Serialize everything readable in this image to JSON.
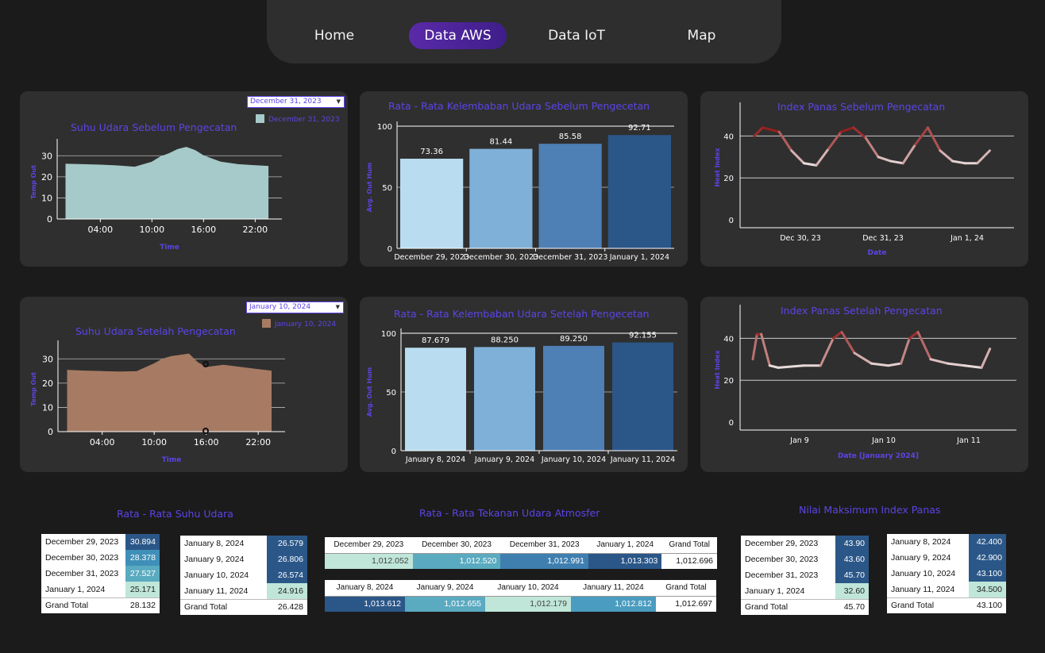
{
  "nav": {
    "items": [
      "Home",
      "Data AWS",
      "Data IoT",
      "Map"
    ],
    "active": "Data AWS"
  },
  "temp_before": {
    "title": "Suhu Udara Sebelum Pengecatan",
    "filter": "December 31, 2023",
    "legend": "December 31, 2023",
    "color": "#a6c9c9",
    "xlabel": "Time",
    "ylabel": "Temp Out",
    "yticks": [
      "30",
      "20",
      "10",
      "0"
    ],
    "xticks": [
      "04:00",
      "10:00",
      "16:00",
      "22:00"
    ]
  },
  "temp_after": {
    "title": "Suhu Udara Setelah Pengecatan",
    "filter": "January 10, 2024",
    "legend": "January 10, 2024",
    "color": "#a77b63",
    "xlabel": "Time",
    "ylabel": "Temp Out",
    "yticks": [
      "30",
      "20",
      "10",
      "0"
    ],
    "xticks": [
      "04:00",
      "10:00",
      "16:00",
      "22:00"
    ]
  },
  "hum_before": {
    "title": "Rata - Rata Kelembaban Udara Sebelum Pengecetan",
    "ylabel": "Avg. Out Hum",
    "yticks": [
      "100",
      "50",
      "0"
    ]
  },
  "hum_after": {
    "title": "Rata - Rata Kelembaban Udara Setelah Pengecetan",
    "ylabel": "Avg. Out Hum",
    "yticks": [
      "100",
      "50",
      "0"
    ]
  },
  "heat_before": {
    "title": "Index Panas Sebelum Pengecatan",
    "ylabel": "Heat Index",
    "xlabel": "Date",
    "yticks": [
      "40",
      "20",
      "0"
    ],
    "xticks": [
      "Dec 30, 23",
      "Dec 31, 23",
      "Jan 1, 24"
    ]
  },
  "heat_after": {
    "title": "Index Panas Setelah Pengecatan",
    "ylabel": "Heat Index",
    "xlabel": "Date [January 2024]",
    "yticks": [
      "40",
      "20",
      "0"
    ],
    "xticks": [
      "Jan 9",
      "Jan 10",
      "Jan 11"
    ]
  },
  "chart_data": [
    {
      "type": "bar",
      "title": "Rata - Rata Kelembaban Udara Sebelum Pengecetan",
      "categories": [
        "December 29, 2023",
        "December 30, 2023",
        "December 31, 2023",
        "January 1, 2024"
      ],
      "values": [
        73.36,
        81.44,
        85.58,
        92.71
      ],
      "labels": [
        "73.36",
        "81.44",
        "85.58",
        "92.71"
      ],
      "colors": [
        "#b9dcf0",
        "#7fb0d8",
        "#4e7fb5",
        "#2b5788"
      ],
      "ylabel": "Avg. Out Hum",
      "ylim": [
        0,
        100
      ]
    },
    {
      "type": "bar",
      "title": "Rata - Rata Kelembaban Udara Setelah Pengecetan",
      "categories": [
        "January 8, 2024",
        "January 9, 2024",
        "January 10, 2024",
        "January 11, 2024"
      ],
      "values": [
        87.679,
        88.25,
        89.25,
        92.155
      ],
      "labels": [
        "87.679",
        "88.250",
        "89.250",
        "92.155"
      ],
      "colors": [
        "#b9dcf0",
        "#7fb0d8",
        "#4e7fb5",
        "#2b5788"
      ],
      "ylabel": "Avg. Out Hum",
      "ylim": [
        0,
        100
      ]
    },
    {
      "type": "area",
      "title": "Suhu Udara Sebelum Pengecatan",
      "x": [
        0,
        2,
        4,
        6,
        8,
        10,
        11,
        12,
        13,
        14,
        15,
        16,
        18,
        20,
        22,
        23.5
      ],
      "values": [
        26,
        25.8,
        25.6,
        25.2,
        24.6,
        27,
        29.5,
        31,
        33,
        34,
        32.5,
        30,
        27,
        25.8,
        25.3,
        25
      ],
      "xlabel": "Time",
      "ylabel": "Temp Out",
      "ylim": [
        0,
        35
      ]
    },
    {
      "type": "area",
      "title": "Suhu Udara Setelah Pengecatan",
      "x": [
        0,
        2,
        4,
        6,
        8,
        10,
        11,
        12,
        13,
        14,
        15,
        16,
        18,
        20,
        22,
        23.5
      ],
      "values": [
        25.3,
        25,
        24.8,
        24.6,
        24.8,
        28,
        30,
        31,
        31.5,
        32,
        28.5,
        26.5,
        27.4,
        26.5,
        25.6,
        25
      ],
      "xlabel": "Time",
      "ylabel": "Temp Out",
      "ylim": [
        0,
        35
      ]
    },
    {
      "type": "line",
      "title": "Index Panas Sebelum Pengecatan",
      "x": [
        0,
        0.1,
        0.3,
        0.45,
        0.6,
        0.75,
        0.9,
        1.05,
        1.2,
        1.35,
        1.5,
        1.65,
        1.8,
        1.95,
        2.1,
        2.25,
        2.4,
        2.55,
        2.7,
        2.85
      ],
      "values": [
        40,
        44,
        42,
        33,
        27,
        26,
        34,
        42,
        44,
        39,
        30,
        28,
        27,
        36,
        44,
        33,
        28,
        27,
        27,
        33
      ],
      "ylabel": "Heat Index",
      "xlabel": "Date",
      "ylim": [
        0,
        50
      ]
    },
    {
      "type": "line",
      "title": "Index Panas Setelah Pengecatan",
      "x": [
        0,
        0.05,
        0.1,
        0.2,
        0.3,
        0.6,
        0.8,
        0.95,
        1.05,
        1.2,
        1.4,
        1.6,
        1.75,
        1.85,
        1.95,
        2.1,
        2.3,
        2.5,
        2.7,
        2.8
      ],
      "values": [
        30,
        42,
        42,
        27,
        26,
        27,
        27,
        40,
        43,
        33,
        28,
        27,
        28,
        40,
        43,
        30,
        28,
        27,
        26,
        35
      ],
      "ylabel": "Heat Index",
      "xlabel": "Date [January 2024]",
      "ylim": [
        0,
        50
      ]
    }
  ],
  "suhu": {
    "title": "Rata - Rata Suhu Udara",
    "table1": [
      {
        "label": "December 29, 2023",
        "value": "30.894",
        "color": "#2b5788",
        "tc": "#fff"
      },
      {
        "label": "December 30, 2023",
        "value": "28.378",
        "color": "#3f8fb8",
        "tc": "#fff"
      },
      {
        "label": "December 31, 2023",
        "value": "27.527",
        "color": "#5aaac0",
        "tc": "#fff"
      },
      {
        "label": "January 1, 2024",
        "value": "25.171",
        "color": "#bfe6d8",
        "tc": "#222"
      }
    ],
    "table1_total": {
      "label": "Grand Total",
      "value": "28.132"
    },
    "table2": [
      {
        "label": "January 8, 2024",
        "value": "26.579",
        "color": "#2b5788",
        "tc": "#fff"
      },
      {
        "label": "January 9, 2024",
        "value": "26.806",
        "color": "#2b5788",
        "tc": "#fff"
      },
      {
        "label": "January 10, 2024",
        "value": "26.574",
        "color": "#2b5788",
        "tc": "#fff"
      },
      {
        "label": "January 11, 2024",
        "value": "24.916",
        "color": "#bfe6d8",
        "tc": "#222"
      }
    ],
    "table2_total": {
      "label": "Grand Total",
      "value": "26.428"
    }
  },
  "tekanan": {
    "title": "Rata - Rata Tekanan Udara Atmosfer",
    "table1": {
      "headers": [
        "December 29, 2023",
        "December 30, 2023",
        "December 31, 2023",
        "January 1, 2024",
        "Grand Total"
      ],
      "values": [
        "1,012.052",
        "1,012.520",
        "1,012.991",
        "1,013.303",
        "1,012.696"
      ],
      "colors": [
        "#bfe6d8",
        "#5aaac0",
        "#3f7fb0",
        "#2b5788",
        "#ffffff"
      ],
      "tcs": [
        "#444",
        "#fff",
        "#fff",
        "#fff",
        "#111"
      ]
    },
    "table2": {
      "headers": [
        "January 8, 2024",
        "January 9, 2024",
        "January 10, 2024",
        "January 11, 2024",
        "Grand Total"
      ],
      "values": [
        "1,013.612",
        "1,012.655",
        "1,012.179",
        "1,012.812",
        "1,012.697"
      ],
      "colors": [
        "#2b5788",
        "#5aaac0",
        "#bfe6d8",
        "#4a9cc0",
        "#ffffff"
      ],
      "tcs": [
        "#fff",
        "#fff",
        "#444",
        "#fff",
        "#111"
      ]
    }
  },
  "maks": {
    "title": "Nilai Maksimum Index Panas",
    "table1": [
      {
        "label": "December 29, 2023",
        "value": "43.90",
        "color": "#2b5788",
        "tc": "#fff"
      },
      {
        "label": "December 30, 2023",
        "value": "43.60",
        "color": "#2b5788",
        "tc": "#fff"
      },
      {
        "label": "December 31, 2023",
        "value": "45.70",
        "color": "#2b5788",
        "tc": "#fff"
      },
      {
        "label": "January 1, 2024",
        "value": "32.60",
        "color": "#bfe6d8",
        "tc": "#222"
      }
    ],
    "table1_total": {
      "label": "Grand Total",
      "value": "45.70"
    },
    "table2": [
      {
        "label": "January 8, 2024",
        "value": "42.400",
        "color": "#2b5788",
        "tc": "#fff"
      },
      {
        "label": "January 9, 2024",
        "value": "42.900",
        "color": "#2b5788",
        "tc": "#fff"
      },
      {
        "label": "January 10, 2024",
        "value": "43.100",
        "color": "#2b5788",
        "tc": "#fff"
      },
      {
        "label": "January 11, 2024",
        "value": "34.500",
        "color": "#bfe6d8",
        "tc": "#222"
      }
    ],
    "table2_total": {
      "label": "Grand Total",
      "value": "43.100"
    }
  }
}
